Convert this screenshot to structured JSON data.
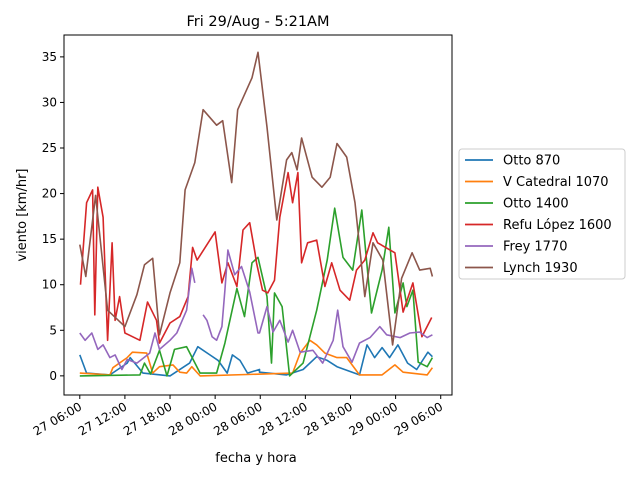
{
  "chart_data": {
    "type": "line",
    "title": "Fri 29/Aug - 5:21AM",
    "xlabel": "fecha y hora",
    "ylabel": "viento [km/hr]",
    "x_units": "hours since 27 06:00",
    "xlim": [
      -2.1,
      49.5
    ],
    "ylim": [
      -2.1,
      37.4
    ],
    "xticks": [
      0,
      6,
      12,
      18,
      24,
      30,
      36,
      42,
      48
    ],
    "xtick_labels": [
      "27 06:00",
      "27 12:00",
      "27 18:00",
      "28 00:00",
      "28 06:00",
      "28 12:00",
      "28 18:00",
      "29 00:00",
      "29 06:00"
    ],
    "yticks": [
      0,
      5,
      10,
      15,
      20,
      25,
      30,
      35
    ],
    "ytick_labels": [
      "0",
      "5",
      "10",
      "15",
      "20",
      "25",
      "30",
      "35"
    ],
    "grid": false,
    "legend_placement": "center-right outside",
    "series": [
      {
        "name": "Otto 870",
        "color": "#1f77b4",
        "points": [
          [
            0,
            2.3
          ],
          [
            0.9,
            0.3
          ],
          [
            4,
            0.1
          ],
          [
            6.3,
            1.4
          ],
          [
            6.7,
            2
          ],
          [
            8.4,
            0.3
          ],
          [
            12,
            0
          ],
          [
            14.6,
            1.4
          ],
          [
            15.7,
            3.2
          ],
          [
            17.3,
            2.3
          ],
          [
            18.4,
            1.7
          ],
          [
            19.6,
            0.3
          ],
          [
            20.3,
            2.3
          ],
          [
            21.3,
            1.7
          ],
          [
            22.3,
            0.3
          ],
          [
            23.9,
            0.7
          ],
          [
            23.9,
            0.4
          ],
          [
            27.5,
            0.1
          ],
          [
            29.7,
            0.7
          ],
          [
            31.5,
            2.1
          ],
          [
            32.9,
            1.7
          ],
          [
            34.2,
            1
          ],
          [
            37.2,
            0.1
          ],
          [
            38.2,
            3.4
          ],
          [
            39.2,
            2
          ],
          [
            40.2,
            3.1
          ],
          [
            41.2,
            2
          ],
          [
            42.3,
            3.4
          ],
          [
            43.6,
            1.4
          ],
          [
            44.8,
            0.7
          ],
          [
            46.3,
            2.6
          ],
          [
            46.9,
            2.1
          ]
        ]
      },
      {
        "name": "V Catedral 1070",
        "color": "#ff7f0e",
        "points": [
          [
            0,
            0.3
          ],
          [
            4,
            0.1
          ],
          [
            4.4,
            0.9
          ],
          [
            6.3,
            2
          ],
          [
            7,
            2.6
          ],
          [
            8.9,
            2.5
          ],
          [
            9.7,
            0.3
          ],
          [
            10.6,
            1
          ],
          [
            12.4,
            1.2
          ],
          [
            13.3,
            0.4
          ],
          [
            14.2,
            0.3
          ],
          [
            14.9,
            1
          ],
          [
            16,
            0
          ],
          [
            28.3,
            0.3
          ],
          [
            29.3,
            2.5
          ],
          [
            30.6,
            3.9
          ],
          [
            31.5,
            3.4
          ],
          [
            32.6,
            2.5
          ],
          [
            34.2,
            2
          ],
          [
            35.5,
            2
          ],
          [
            37.2,
            0.1
          ],
          [
            40.2,
            0.1
          ],
          [
            41.9,
            1.2
          ],
          [
            43,
            0.4
          ],
          [
            46.2,
            0.1
          ],
          [
            46.9,
            0.9
          ]
        ]
      },
      {
        "name": "Otto 1400",
        "color": "#2ca02c",
        "points": [
          [
            0,
            0
          ],
          [
            8,
            0.1
          ],
          [
            8.6,
            1.4
          ],
          [
            9.4,
            0.2
          ],
          [
            10.6,
            2.8
          ],
          [
            11.6,
            0
          ],
          [
            12.6,
            2.9
          ],
          [
            14.2,
            3.2
          ],
          [
            16,
            0.3
          ],
          [
            18.2,
            0.3
          ],
          [
            19.3,
            3.6
          ],
          [
            20.9,
            9.6
          ],
          [
            21.9,
            6.5
          ],
          [
            22.9,
            12.4
          ],
          [
            23.7,
            13
          ],
          [
            24.9,
            8.7
          ],
          [
            25.5,
            1.4
          ],
          [
            25.9,
            9.1
          ],
          [
            26.9,
            7.6
          ],
          [
            27.9,
            0
          ],
          [
            29.7,
            1.4
          ],
          [
            31.5,
            7.2
          ],
          [
            32.9,
            12.7
          ],
          [
            33.9,
            18.4
          ],
          [
            35,
            13
          ],
          [
            36.3,
            11.6
          ],
          [
            37.5,
            18.2
          ],
          [
            38.8,
            6.9
          ],
          [
            40.2,
            11.6
          ],
          [
            41.1,
            16.3
          ],
          [
            41.9,
            6.9
          ],
          [
            43,
            10.2
          ],
          [
            43.5,
            7.6
          ],
          [
            44.3,
            9.4
          ],
          [
            45,
            1.5
          ],
          [
            46.2,
            1
          ],
          [
            46.9,
            2
          ]
        ]
      },
      {
        "name": "Refu López 1600",
        "color": "#d62728",
        "points": [
          [
            0.1,
            10
          ],
          [
            0.9,
            19
          ],
          [
            1.7,
            20.4
          ],
          [
            2,
            6.7
          ],
          [
            2.4,
            20.7
          ],
          [
            3.1,
            17.4
          ],
          [
            3.7,
            3.9
          ],
          [
            4.3,
            14.6
          ],
          [
            4.7,
            6.1
          ],
          [
            5.3,
            8.7
          ],
          [
            6,
            4.7
          ],
          [
            8,
            3.9
          ],
          [
            9,
            8.1
          ],
          [
            10.2,
            6.1
          ],
          [
            10.6,
            3.6
          ],
          [
            12,
            5.8
          ],
          [
            13.3,
            6.5
          ],
          [
            14.4,
            8.7
          ],
          [
            15,
            14.1
          ],
          [
            15.6,
            12.7
          ],
          [
            18,
            15.8
          ],
          [
            18.9,
            10.2
          ],
          [
            19.7,
            12.4
          ],
          [
            20.9,
            9.8
          ],
          [
            21.7,
            16
          ],
          [
            22.6,
            16.8
          ],
          [
            23.3,
            13.5
          ],
          [
            23.5,
            12.4
          ],
          [
            24.3,
            9.4
          ],
          [
            25,
            9.1
          ],
          [
            25.9,
            10.5
          ],
          [
            26.6,
            17.4
          ],
          [
            27.7,
            22.3
          ],
          [
            28.3,
            19
          ],
          [
            29,
            22.3
          ],
          [
            29.5,
            12.4
          ],
          [
            30.3,
            14.6
          ],
          [
            31.5,
            14.9
          ],
          [
            32.6,
            9.8
          ],
          [
            33.5,
            12.4
          ],
          [
            34.6,
            9.4
          ],
          [
            35.9,
            8.3
          ],
          [
            36.8,
            11.6
          ],
          [
            37.9,
            12.7
          ],
          [
            39,
            15.7
          ],
          [
            39.6,
            14.6
          ],
          [
            41.9,
            13.5
          ],
          [
            43,
            7
          ],
          [
            44.3,
            10.2
          ],
          [
            45.5,
            4.3
          ],
          [
            46.8,
            6.4
          ]
        ]
      },
      {
        "name": "Frey 1770",
        "color": "#9467bd",
        "points": [
          [
            0,
            4.7
          ],
          [
            0.7,
            3.9
          ],
          [
            1.6,
            4.7
          ],
          [
            2.4,
            2.9
          ],
          [
            3.1,
            3.4
          ],
          [
            4,
            2
          ],
          [
            4.7,
            2.3
          ],
          [
            5.6,
            0.7
          ],
          [
            6.3,
            1.8
          ],
          [
            7.6,
            1.4
          ],
          [
            9.3,
            2.5
          ],
          [
            10,
            4.7
          ],
          [
            10.6,
            2.9
          ],
          [
            12,
            3.9
          ],
          [
            12.9,
            4.7
          ],
          [
            14.2,
            7.2
          ],
          [
            14.9,
            11.8
          ],
          [
            15.3,
            10.2
          ],
          [
            null,
            null
          ],
          [
            16.4,
            6.7
          ],
          [
            16.9,
            6.1
          ],
          [
            17.6,
            4.3
          ],
          [
            18.2,
            3.9
          ],
          [
            18.9,
            5.4
          ],
          [
            19.3,
            9.4
          ],
          [
            19.7,
            13.8
          ],
          [
            20.6,
            11.1
          ],
          [
            21.5,
            12
          ],
          [
            22.6,
            9.2
          ],
          [
            23.7,
            4.7
          ],
          [
            23.9,
            4.7
          ],
          [
            24.9,
            7.6
          ],
          [
            25.7,
            4.8
          ],
          [
            26.6,
            6.1
          ],
          [
            27.7,
            3.7
          ],
          [
            28.3,
            5
          ],
          [
            29.3,
            2.6
          ],
          [
            31,
            2.8
          ],
          [
            32.3,
            1.4
          ],
          [
            33.7,
            3.9
          ],
          [
            34.3,
            7.2
          ],
          [
            35,
            3.2
          ],
          [
            36.2,
            1.5
          ],
          [
            37.2,
            3.6
          ],
          [
            38.6,
            4.2
          ],
          [
            39.9,
            5.4
          ],
          [
            40.8,
            4.5
          ],
          [
            42.6,
            4.2
          ],
          [
            43.9,
            4.7
          ],
          [
            45.2,
            4.8
          ],
          [
            46.2,
            4.2
          ],
          [
            46.9,
            4.5
          ]
        ]
      },
      {
        "name": "Lynch 1930",
        "color": "#8c564b",
        "points": [
          [
            0,
            14.4
          ],
          [
            0.8,
            10.9
          ],
          [
            2.1,
            19.8
          ],
          [
            3.7,
            7.2
          ],
          [
            6,
            5.4
          ],
          [
            7.6,
            8.9
          ],
          [
            8.6,
            12.2
          ],
          [
            9.7,
            12.9
          ],
          [
            10.6,
            4.5
          ],
          [
            12,
            9.1
          ],
          [
            13.3,
            12.4
          ],
          [
            14,
            20.4
          ],
          [
            15.3,
            23.4
          ],
          [
            16.4,
            29.2
          ],
          [
            18.2,
            27.5
          ],
          [
            19,
            28
          ],
          [
            20.2,
            21.2
          ],
          [
            21,
            29.2
          ],
          [
            22.9,
            32.7
          ],
          [
            23.7,
            35.5
          ],
          [
            24.9,
            27.3
          ],
          [
            26.2,
            17.1
          ],
          [
            27.5,
            23.7
          ],
          [
            28.2,
            24.5
          ],
          [
            28.9,
            22.6
          ],
          [
            29.5,
            26.1
          ],
          [
            30.9,
            21.8
          ],
          [
            32.2,
            20.7
          ],
          [
            33.3,
            21.8
          ],
          [
            34.2,
            25.5
          ],
          [
            35.5,
            24
          ],
          [
            36.6,
            19
          ],
          [
            37.9,
            8.7
          ],
          [
            39,
            14.6
          ],
          [
            40.3,
            12.7
          ],
          [
            41.6,
            3.4
          ],
          [
            42.8,
            10.7
          ],
          [
            44.2,
            13.5
          ],
          [
            45.2,
            11.6
          ],
          [
            46.6,
            11.8
          ],
          [
            46.9,
            10.9
          ]
        ]
      }
    ]
  }
}
